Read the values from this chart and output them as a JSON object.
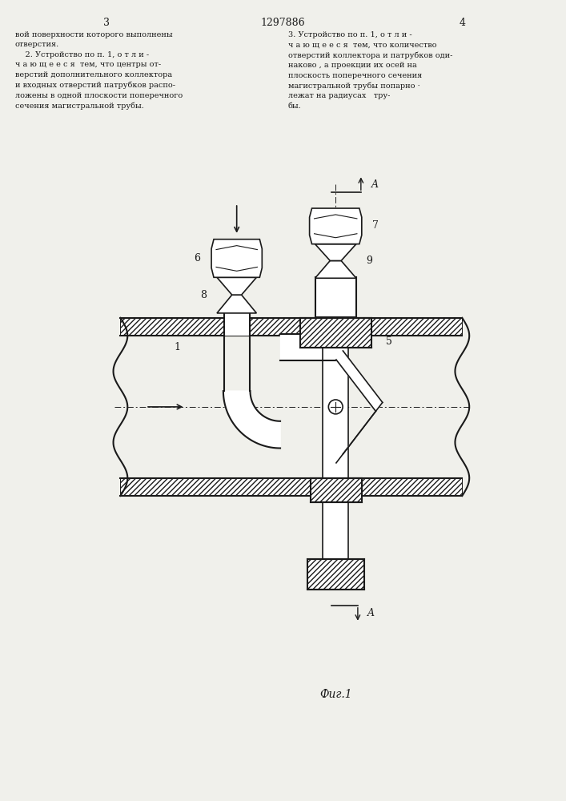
{
  "bg_color": "#f0f0eb",
  "line_color": "#1a1a1a",
  "page_number_left": "3",
  "page_number_center": "1297886",
  "page_number_right": "4",
  "text_left": "вой поверхности которого выполнены\nотверстия.\n    2. Устройство по п. 1, о т л и -\nч а ю щ е е с я  тем, что центры от-\nверстий дополнительного коллектора\nи входных отверстий патрубков распо-\nложены в одной плоскости поперечного\nсечения магистральной трубы.",
  "text_right": "3. Устройство по п. 1, о т л и -\nч а ю щ е е с я  тем, что количество\nотверстий коллектора и патрубков оди-\nнаково , а проекции их осей на\nплоскость поперечного сечения\nмагистральной трубы попарно ·\nлежат на радиусах   тру-\nбы.",
  "fig_label": "Фиг.1"
}
